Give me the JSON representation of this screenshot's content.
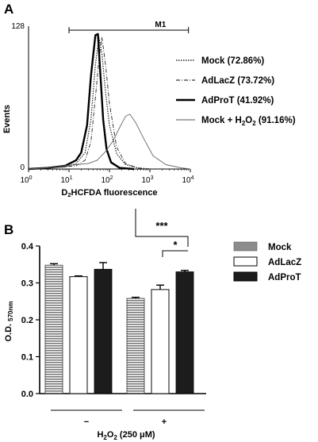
{
  "chart_data": [
    {
      "panel": "A",
      "type": "line",
      "ylabel": "Events",
      "xlabel": "D₂HCFDA fluorescence",
      "xlabel_parts": [
        "D",
        "2",
        "HCFDA fluorescence"
      ],
      "x_scale": "log",
      "xlim": [
        1,
        10000
      ],
      "ylim": [
        0,
        128
      ],
      "y_ticks": [
        "0",
        "128"
      ],
      "x_ticks": [
        {
          "base": "10",
          "exp": "0"
        },
        {
          "base": "10",
          "exp": "1"
        },
        {
          "base": "10",
          "exp": "2"
        },
        {
          "base": "10",
          "exp": "3"
        },
        {
          "base": "10",
          "exp": "4"
        }
      ],
      "gate": {
        "label": "M1",
        "x_range": [
          10,
          9000
        ]
      },
      "legend": [
        {
          "label": "Mock (72.86%)",
          "style": "dotted"
        },
        {
          "label": "AdLacZ (73.72%)",
          "style": "dashdot"
        },
        {
          "label": "AdProT (41.92%)",
          "style": "thick"
        },
        {
          "label_parts": [
            "Mock + H",
            "2",
            "O",
            "2",
            " (91.16%)"
          ],
          "style": "thin"
        }
      ],
      "series": [
        {
          "name": "Mock (72.86%)",
          "x": [
            1,
            3,
            8,
            15,
            25,
            35,
            45,
            55,
            65,
            80,
            100,
            150,
            250,
            500,
            1000
          ],
          "y": [
            0,
            1,
            2,
            5,
            15,
            45,
            95,
            120,
            105,
            70,
            40,
            14,
            4,
            1,
            0
          ]
        },
        {
          "name": "AdLacZ (73.72%)",
          "x": [
            1,
            3,
            8,
            15,
            25,
            35,
            45,
            55,
            65,
            80,
            100,
            150,
            250,
            500,
            1000
          ],
          "y": [
            0,
            1,
            2,
            3,
            8,
            25,
            65,
            100,
            120,
            95,
            60,
            20,
            5,
            1,
            0
          ]
        },
        {
          "name": "AdProT (41.92%)",
          "x": [
            1,
            3,
            8,
            15,
            20,
            28,
            35,
            45,
            52,
            60,
            70,
            85,
            110,
            180,
            400
          ],
          "y": [
            0,
            1,
            3,
            8,
            15,
            40,
            85,
            122,
            123,
            85,
            45,
            18,
            6,
            1,
            0
          ]
        },
        {
          "name": "Mock + H2O2 (91.16%)",
          "x": [
            1,
            3,
            8,
            15,
            30,
            50,
            80,
            120,
            180,
            250,
            320,
            450,
            700,
            1200,
            2500,
            6000,
            10000
          ],
          "y": [
            0,
            1,
            3,
            4,
            5,
            8,
            16,
            25,
            38,
            48,
            50,
            42,
            28,
            12,
            4,
            1,
            0
          ]
        }
      ]
    },
    {
      "panel": "B",
      "type": "bar",
      "ylabel": "O.D. 570nm",
      "ylabel_parts": [
        "O.D. ",
        "570nm"
      ],
      "ylim": [
        0,
        0.4
      ],
      "y_ticks": [
        "0.0",
        "0.1",
        "0.2",
        "0.3",
        "0.4"
      ],
      "groups": [
        "−",
        "+"
      ],
      "xlabel_parts": [
        "H",
        "2",
        "O",
        "2",
        " (250 μM)"
      ],
      "series": [
        {
          "name": "Mock",
          "values": [
            0.348,
            0.258
          ],
          "errors": [
            0.004,
            0.003
          ],
          "color": "#8c8c8c"
        },
        {
          "name": "AdLacZ",
          "values": [
            0.317,
            0.282
          ],
          "errors": [
            0.002,
            0.012
          ],
          "color": "#ffffff"
        },
        {
          "name": "AdProT",
          "values": [
            0.337,
            0.33
          ],
          "errors": [
            0.018,
            0.004
          ],
          "color": "#1c1c1c"
        }
      ],
      "significance": [
        {
          "label": "***",
          "between": [
            "Mock +",
            "AdProT +"
          ]
        },
        {
          "label": "*",
          "between": [
            "AdLacZ +",
            "AdProT +"
          ]
        }
      ]
    }
  ]
}
